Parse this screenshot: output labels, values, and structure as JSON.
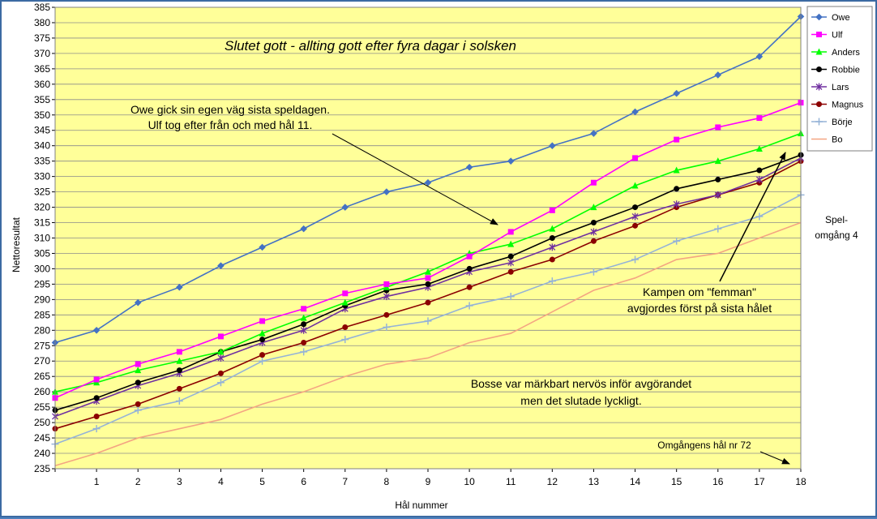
{
  "chart_data": {
    "type": "line",
    "title": "Slutet gott - allting gott efter fyra dagar i solsken",
    "xlabel": "Hål nummer",
    "ylabel": "Nettoresultat",
    "x": [
      0,
      1,
      2,
      3,
      4,
      5,
      6,
      7,
      8,
      9,
      10,
      11,
      12,
      13,
      14,
      15,
      16,
      17,
      18
    ],
    "x_tick_labels": [
      "",
      "1",
      "2",
      "3",
      "4",
      "5",
      "6",
      "7",
      "8",
      "9",
      "10",
      "11",
      "12",
      "13",
      "14",
      "15",
      "16",
      "17",
      "18"
    ],
    "ylim": [
      235,
      385
    ],
    "ytick_step": 5,
    "grid": "horizontal",
    "plot_background": "#ffff99",
    "legend_position": "right",
    "series": [
      {
        "name": "Owe",
        "color": "#4472c4",
        "marker": "diamond",
        "values": [
          276,
          280,
          289,
          294,
          301,
          307,
          313,
          320,
          325,
          328,
          333,
          335,
          340,
          344,
          351,
          357,
          363,
          369,
          382
        ]
      },
      {
        "name": "Ulf",
        "color": "#ff00ff",
        "marker": "square",
        "values": [
          258,
          264,
          269,
          273,
          278,
          283,
          287,
          292,
          295,
          297,
          304,
          312,
          319,
          328,
          336,
          342,
          346,
          349,
          354
        ]
      },
      {
        "name": "Anders",
        "color": "#00ff00",
        "marker": "triangle",
        "values": [
          260,
          263,
          267,
          270,
          273,
          279,
          284,
          289,
          294,
          299,
          305,
          308,
          313,
          320,
          327,
          332,
          335,
          339,
          344
        ]
      },
      {
        "name": "Robbie",
        "color": "#000000",
        "marker": "circle",
        "values": [
          254,
          258,
          263,
          267,
          273,
          277,
          282,
          288,
          293,
          295,
          300,
          304,
          310,
          315,
          320,
          326,
          329,
          332,
          337
        ]
      },
      {
        "name": "Lars",
        "color": "#7030a0",
        "marker": "star",
        "values": [
          252,
          257,
          262,
          266,
          271,
          276,
          280,
          287,
          291,
          294,
          299,
          302,
          307,
          312,
          317,
          321,
          324,
          329,
          336
        ]
      },
      {
        "name": "Magnus",
        "color": "#8b0000",
        "marker": "circle",
        "values": [
          248,
          252,
          256,
          261,
          266,
          272,
          276,
          281,
          285,
          289,
          294,
          299,
          303,
          309,
          314,
          320,
          324,
          328,
          335
        ]
      },
      {
        "name": "Börje",
        "color": "#95b3d7",
        "marker": "plus",
        "values": [
          243,
          248,
          254,
          257,
          263,
          270,
          273,
          277,
          281,
          283,
          288,
          291,
          296,
          299,
          303,
          309,
          313,
          317,
          324
        ]
      },
      {
        "name": "Bo",
        "color": "#f4a582",
        "marker": "none",
        "values": [
          236,
          240,
          245,
          248,
          251,
          256,
          260,
          265,
          269,
          271,
          276,
          279,
          286,
          293,
          297,
          303,
          305,
          310,
          315
        ]
      }
    ],
    "annotations": {
      "owe_line1": "Owe gick sin egen väg sista speldagen.",
      "owe_line2": "Ulf tog efter från och med hål 11.",
      "femman_line1": "Kampen om \"femman\"",
      "femman_line2": "avgjordes först på sista hålet",
      "bosse_line1": "Bosse var märkbart nervös inför avgörandet",
      "bosse_line2": "men det slutade lyckligt.",
      "hole72": "Omgångens hål nr 72",
      "round_line1": "Spel-",
      "round_line2": "omgång 4"
    }
  }
}
